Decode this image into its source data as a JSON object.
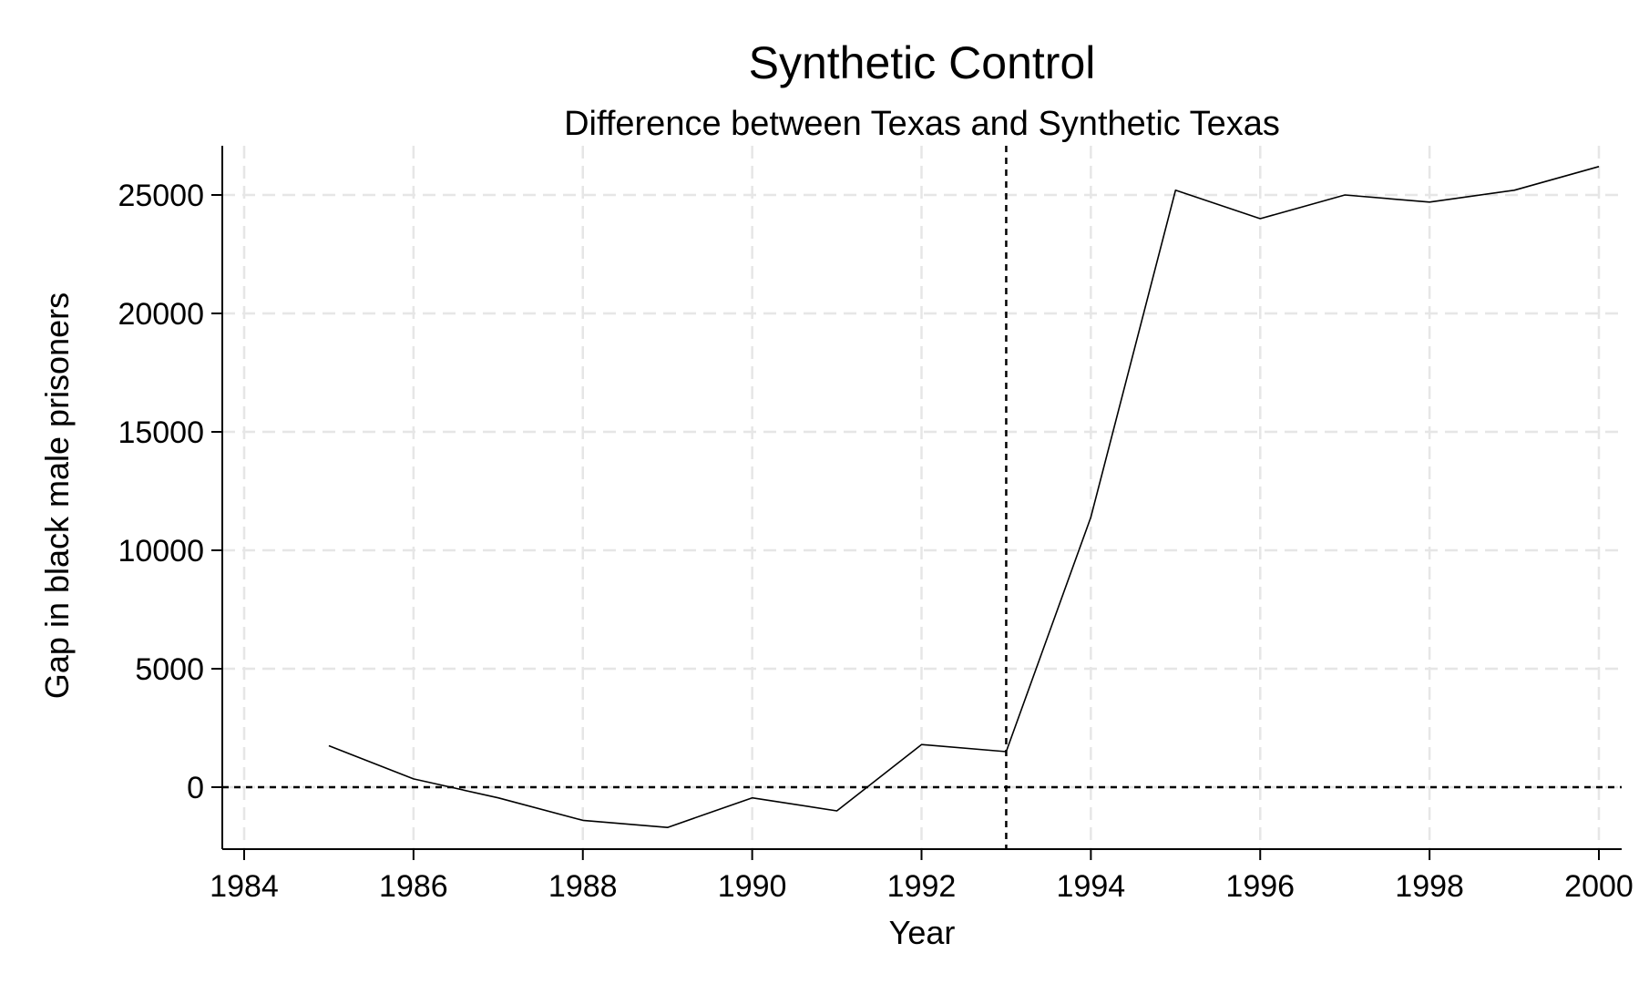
{
  "chart_data": {
    "type": "line",
    "title": "Synthetic Control",
    "subtitle": "Difference between Texas and Synthetic Texas",
    "xlabel": "Year",
    "ylabel": "Gap in black male prisoners",
    "xlim": [
      1984,
      2000
    ],
    "ylim": [
      -2600,
      27000
    ],
    "x_ticks": [
      1984,
      1986,
      1988,
      1990,
      1992,
      1994,
      1996,
      1998,
      2000
    ],
    "y_ticks": [
      0,
      5000,
      10000,
      15000,
      20000,
      25000
    ],
    "grid": true,
    "legend": "none",
    "reference_lines": {
      "vertical_x": 1993,
      "horizontal_y": 0
    },
    "series": [
      {
        "x": [
          1985,
          1986,
          1987,
          1988,
          1989,
          1990,
          1991,
          1992,
          1993,
          1994,
          1995,
          1996,
          1997,
          1998,
          1999,
          2000
        ],
        "values": [
          1750,
          350,
          -450,
          -1400,
          -1700,
          -450,
          -1000,
          1800,
          1500,
          11400,
          25200,
          24000,
          25000,
          24700,
          25200,
          26200
        ]
      }
    ]
  },
  "colors": {
    "line": "#000000",
    "grid": "#e6e6e6",
    "background": "#ffffff"
  }
}
